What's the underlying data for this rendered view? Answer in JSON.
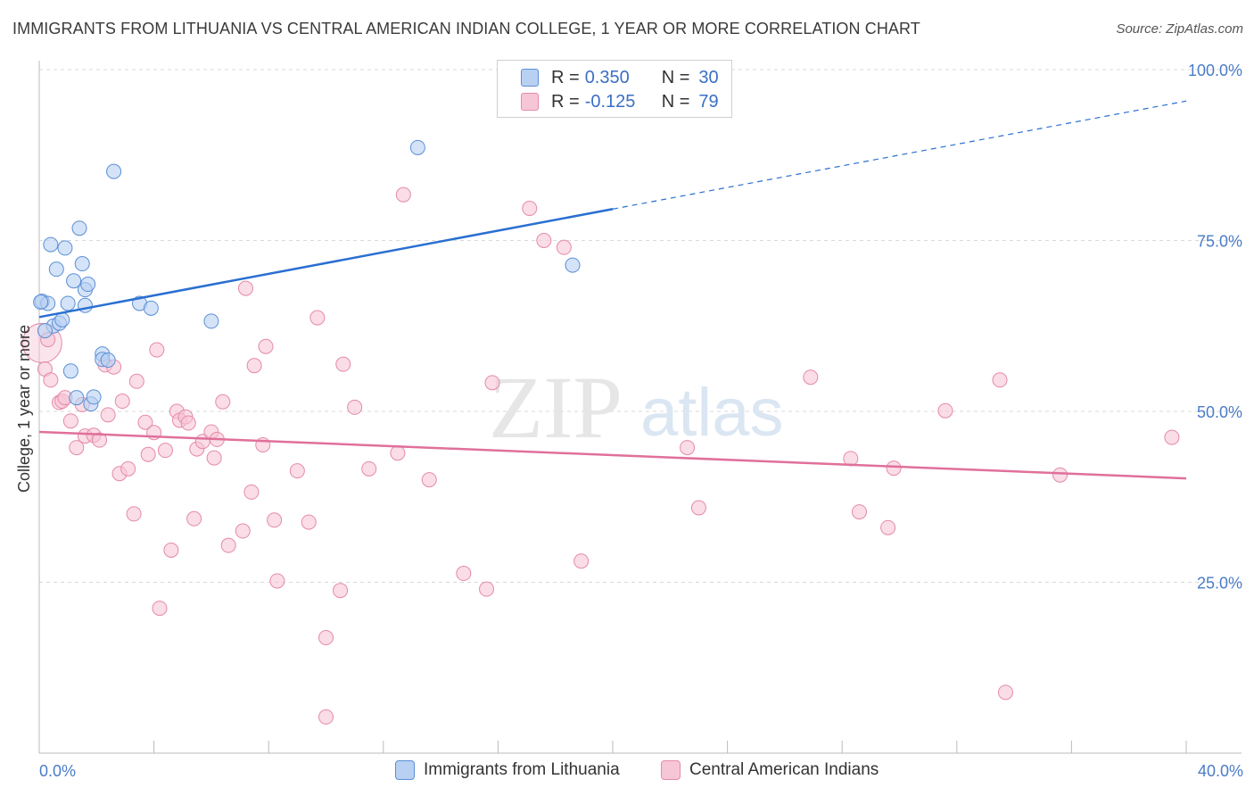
{
  "title": "IMMIGRANTS FROM LITHUANIA VS CENTRAL AMERICAN INDIAN COLLEGE, 1 YEAR OR MORE CORRELATION CHART",
  "source": "Source: ZipAtlas.com",
  "watermark": {
    "zip": "ZIP",
    "atlas": "atlas"
  },
  "legend": {
    "r_label": "R =",
    "n_label": "N =",
    "series": [
      {
        "name": "Immigrants from Lithuania",
        "r": "0.350",
        "n": "30",
        "fill": "#b8d0f2",
        "stroke": "#5b8fd6"
      },
      {
        "name": "Central American Indians",
        "r": "-0.125",
        "n": "79",
        "fill": "#f7c6d6",
        "stroke": "#e58aa8"
      }
    ]
  },
  "colors": {
    "blue_line": "#2a6fd1",
    "pink_line": "#e0709a",
    "grid": "#d9d9d9",
    "tick_text": "#4a7cc7"
  },
  "chart_data": {
    "type": "scatter",
    "title": "IMMIGRANTS FROM LITHUANIA VS CENTRAL AMERICAN INDIAN COLLEGE, 1 YEAR OR MORE CORRELATION CHART",
    "xlabel": "",
    "ylabel": "College, 1 year or more",
    "xlim": [
      0,
      40
    ],
    "ylim": [
      0,
      100
    ],
    "x_tick_labels": [
      {
        "value": 0,
        "label": "0.0%"
      },
      {
        "value": 40,
        "label": "40.0%"
      }
    ],
    "y_tick_labels": [
      {
        "value": 25,
        "label": "25.0%"
      },
      {
        "value": 50,
        "label": "50.0%"
      },
      {
        "value": 75,
        "label": "75.0%"
      },
      {
        "value": 100,
        "label": "100.0%"
      }
    ],
    "legend_position": "top-center",
    "series": [
      {
        "name": "Immigrants from Lithuania",
        "r": 0.35,
        "n": 30,
        "trend": {
          "x": [
            0,
            20
          ],
          "y": [
            63.8,
            79.6
          ],
          "dashed_to": [
            40,
            95.4
          ]
        },
        "points": [
          [
            0.1,
            66.1
          ],
          [
            0.3,
            65.8
          ],
          [
            0.4,
            74.4
          ],
          [
            0.5,
            62.5
          ],
          [
            0.6,
            70.8
          ],
          [
            0.7,
            62.9
          ],
          [
            0.8,
            63.4
          ],
          [
            0.9,
            73.9
          ],
          [
            1.0,
            65.8
          ],
          [
            1.1,
            55.9
          ],
          [
            1.2,
            69.1
          ],
          [
            1.3,
            52.0
          ],
          [
            1.4,
            76.8
          ],
          [
            1.5,
            71.6
          ],
          [
            1.6,
            65.5
          ],
          [
            1.6,
            67.8
          ],
          [
            1.7,
            68.6
          ],
          [
            1.8,
            51.1
          ],
          [
            1.9,
            52.1
          ],
          [
            2.2,
            58.4
          ],
          [
            2.2,
            57.6
          ],
          [
            2.4,
            57.5
          ],
          [
            2.6,
            85.1
          ],
          [
            3.5,
            65.8
          ],
          [
            3.9,
            65.1
          ],
          [
            6.0,
            63.2
          ],
          [
            13.2,
            88.6
          ],
          [
            18.6,
            71.4
          ],
          [
            0.2,
            61.8
          ],
          [
            0.05,
            66.0
          ]
        ]
      },
      {
        "name": "Central American Indians",
        "r": -0.125,
        "n": 79,
        "trend": {
          "x": [
            0,
            40
          ],
          "y": [
            47.0,
            40.2
          ]
        },
        "points": [
          [
            0.1,
            60.0
          ],
          [
            0.2,
            56.2
          ],
          [
            0.4,
            54.6
          ],
          [
            0.7,
            51.3
          ],
          [
            0.8,
            51.5
          ],
          [
            0.9,
            52.0
          ],
          [
            1.1,
            48.6
          ],
          [
            1.3,
            44.7
          ],
          [
            1.5,
            51.0
          ],
          [
            1.6,
            46.4
          ],
          [
            1.9,
            46.5
          ],
          [
            2.1,
            45.8
          ],
          [
            2.3,
            56.8
          ],
          [
            2.4,
            49.5
          ],
          [
            2.6,
            56.5
          ],
          [
            2.8,
            40.9
          ],
          [
            2.9,
            51.5
          ],
          [
            3.1,
            41.6
          ],
          [
            3.3,
            35.0
          ],
          [
            3.4,
            54.4
          ],
          [
            3.7,
            48.4
          ],
          [
            3.8,
            43.7
          ],
          [
            4.0,
            46.9
          ],
          [
            4.1,
            59.0
          ],
          [
            4.2,
            21.2
          ],
          [
            4.4,
            44.3
          ],
          [
            4.6,
            29.7
          ],
          [
            4.8,
            50.0
          ],
          [
            4.9,
            48.7
          ],
          [
            5.1,
            49.2
          ],
          [
            5.2,
            48.3
          ],
          [
            5.4,
            34.3
          ],
          [
            5.5,
            44.5
          ],
          [
            5.7,
            45.6
          ],
          [
            6.0,
            47.0
          ],
          [
            6.1,
            43.2
          ],
          [
            6.2,
            45.9
          ],
          [
            6.4,
            51.4
          ],
          [
            6.6,
            30.4
          ],
          [
            7.1,
            32.5
          ],
          [
            7.2,
            68.0
          ],
          [
            7.4,
            38.2
          ],
          [
            7.5,
            56.7
          ],
          [
            7.8,
            45.1
          ],
          [
            7.9,
            59.5
          ],
          [
            8.2,
            34.1
          ],
          [
            8.3,
            25.2
          ],
          [
            9.0,
            41.3
          ],
          [
            9.4,
            33.8
          ],
          [
            9.7,
            63.7
          ],
          [
            10.0,
            16.9
          ],
          [
            10.0,
            5.3
          ],
          [
            10.5,
            23.8
          ],
          [
            10.6,
            56.9
          ],
          [
            11.0,
            50.6
          ],
          [
            11.5,
            41.6
          ],
          [
            12.5,
            43.9
          ],
          [
            12.7,
            81.7
          ],
          [
            13.6,
            40.0
          ],
          [
            14.8,
            26.3
          ],
          [
            15.6,
            24.0
          ],
          [
            15.8,
            54.2
          ],
          [
            17.1,
            79.7
          ],
          [
            17.6,
            75.0
          ],
          [
            18.3,
            74.0
          ],
          [
            18.9,
            28.1
          ],
          [
            22.6,
            44.7
          ],
          [
            23.0,
            35.9
          ],
          [
            26.9,
            55.0
          ],
          [
            28.3,
            43.1
          ],
          [
            28.6,
            35.3
          ],
          [
            29.6,
            33.0
          ],
          [
            29.8,
            41.7
          ],
          [
            31.6,
            50.1
          ],
          [
            33.5,
            54.6
          ],
          [
            33.7,
            8.9
          ],
          [
            35.6,
            40.7
          ],
          [
            39.5,
            46.2
          ],
          [
            0.3,
            60.5
          ]
        ]
      }
    ]
  }
}
